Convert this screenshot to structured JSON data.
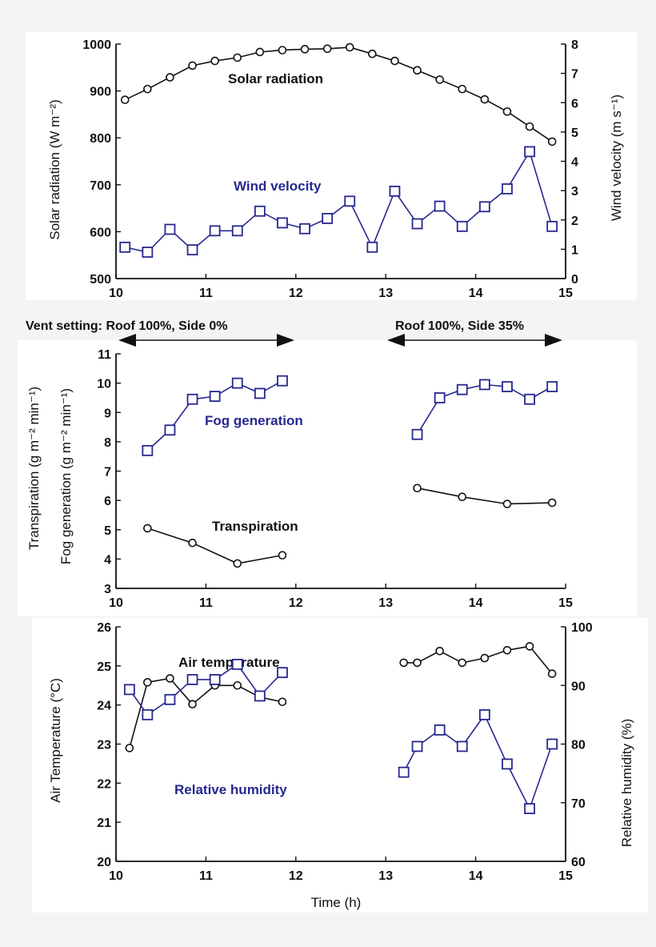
{
  "colors": {
    "black_series": "#111111",
    "blue_series": "#26288f",
    "background": "#f4f4f4",
    "panel": "#ffffff"
  },
  "x_label": "Time (h)",
  "vent": {
    "left": "Vent setting: Roof 100%, Side 0%",
    "right": "Roof 100%, Side 35%"
  },
  "chart_data": [
    {
      "type": "line",
      "panel": "top",
      "xlim": [
        10,
        15
      ],
      "xticks": [
        "10",
        "11",
        "12",
        "13",
        "14",
        "15"
      ],
      "ylabel": "Solar radiation (W m⁻²)",
      "ylim": [
        500,
        1000
      ],
      "yticks": [
        "500",
        "600",
        "700",
        "800",
        "900",
        "1000"
      ],
      "y2label": "Wind velocity (m s⁻¹)",
      "y2lim": [
        0,
        8
      ],
      "y2ticks": [
        "0",
        "1",
        "2",
        "3",
        "4",
        "5",
        "6",
        "7",
        "8"
      ],
      "series": [
        {
          "name": "Solar radiation",
          "axis": "left",
          "marker": "circle",
          "color": "#111111",
          "x": [
            10.1,
            10.35,
            10.6,
            10.85,
            11.1,
            11.35,
            11.6,
            11.85,
            12.1,
            12.35,
            12.6,
            12.85,
            13.1,
            13.35,
            13.6,
            13.85,
            14.1,
            14.35,
            14.6,
            14.85
          ],
          "y": [
            881,
            904,
            929,
            954,
            964,
            971,
            983,
            987,
            989,
            990,
            993,
            979,
            964,
            944,
            924,
            904,
            882,
            856,
            824,
            792
          ]
        },
        {
          "name": "Wind velocity",
          "axis": "right",
          "marker": "square",
          "color": "#26288f",
          "x": [
            10.1,
            10.35,
            10.6,
            10.85,
            11.1,
            11.35,
            11.6,
            11.85,
            12.1,
            12.35,
            12.6,
            12.85,
            13.1,
            13.35,
            13.6,
            13.85,
            14.1,
            14.35,
            14.6,
            14.85
          ],
          "y": [
            1.07,
            0.9,
            1.68,
            0.98,
            1.63,
            1.63,
            2.3,
            1.9,
            1.7,
            2.05,
            2.64,
            1.07,
            2.98,
            1.87,
            2.47,
            1.78,
            2.45,
            3.06,
            4.33,
            1.78
          ]
        }
      ]
    },
    {
      "type": "line",
      "panel": "middle",
      "xlim": [
        10,
        15
      ],
      "xticks": [
        "10",
        "11",
        "12",
        "13",
        "14",
        "15"
      ],
      "ylabel_outer": "Transpiration (g m⁻² min⁻¹)",
      "ylabel_inner": "Fog generation (g m⁻² min⁻¹)",
      "ylim": [
        3,
        11
      ],
      "yticks": [
        "3",
        "4",
        "5",
        "6",
        "7",
        "8",
        "9",
        "10",
        "11"
      ],
      "series": [
        {
          "name": "Fog generation",
          "marker": "square",
          "color": "#26288f",
          "segments": [
            {
              "x": [
                10.35,
                10.6,
                10.85,
                11.1,
                11.35,
                11.6,
                11.85
              ],
              "y": [
                7.7,
                8.4,
                9.45,
                9.55,
                10.0,
                9.65,
                10.08
              ]
            },
            {
              "x": [
                13.35,
                13.6,
                13.85,
                14.1,
                14.35,
                14.6,
                14.85
              ],
              "y": [
                8.25,
                9.5,
                9.78,
                9.95,
                9.88,
                9.45,
                9.88
              ]
            }
          ]
        },
        {
          "name": "Transpiration",
          "marker": "circle",
          "color": "#111111",
          "segments": [
            {
              "x": [
                10.35,
                10.85,
                11.35,
                11.85
              ],
              "y": [
                5.05,
                4.55,
                3.85,
                4.13
              ]
            },
            {
              "x": [
                13.35,
                13.85,
                14.35,
                14.85
              ],
              "y": [
                6.42,
                6.12,
                5.88,
                5.92
              ]
            }
          ]
        }
      ]
    },
    {
      "type": "line",
      "panel": "bottom",
      "xlim": [
        10,
        15
      ],
      "xticks": [
        "10",
        "11",
        "12",
        "13",
        "14",
        "15"
      ],
      "ylabel": "Air Temperature (°C)",
      "ylim": [
        20,
        26
      ],
      "yticks": [
        "20",
        "21",
        "22",
        "23",
        "24",
        "25",
        "26"
      ],
      "y2label": "Relative humidity (%)",
      "y2lim": [
        60,
        100
      ],
      "y2ticks": [
        "60",
        "70",
        "80",
        "90",
        "100"
      ],
      "series": [
        {
          "name": "Air temperature",
          "axis": "left",
          "marker": "circle",
          "color": "#111111",
          "segments": [
            {
              "x": [
                10.15,
                10.35,
                10.6,
                10.85,
                11.1,
                11.35,
                11.6,
                11.85
              ],
              "y": [
                22.9,
                24.58,
                24.68,
                24.02,
                24.5,
                24.5,
                24.2,
                24.08
              ]
            },
            {
              "x": [
                13.2,
                13.35,
                13.6,
                13.85,
                14.1,
                14.35,
                14.6,
                14.85
              ],
              "y": [
                25.08,
                25.08,
                25.38,
                25.08,
                25.2,
                25.4,
                25.5,
                24.8
              ]
            }
          ]
        },
        {
          "name": "Relative humidity",
          "axis": "right",
          "marker": "square",
          "color": "#26288f",
          "segments": [
            {
              "x": [
                10.15,
                10.35,
                10.6,
                10.85,
                11.1,
                11.35,
                11.6,
                11.85
              ],
              "y": [
                89.3,
                85.0,
                87.6,
                91.0,
                91.0,
                93.6,
                88.2,
                92.2
              ]
            },
            {
              "x": [
                13.2,
                13.35,
                13.6,
                13.85,
                14.1,
                14.35,
                14.6,
                14.85
              ],
              "y": [
                75.2,
                79.6,
                82.4,
                79.6,
                85.0,
                76.6,
                69.0,
                80.0
              ]
            }
          ]
        }
      ]
    }
  ]
}
